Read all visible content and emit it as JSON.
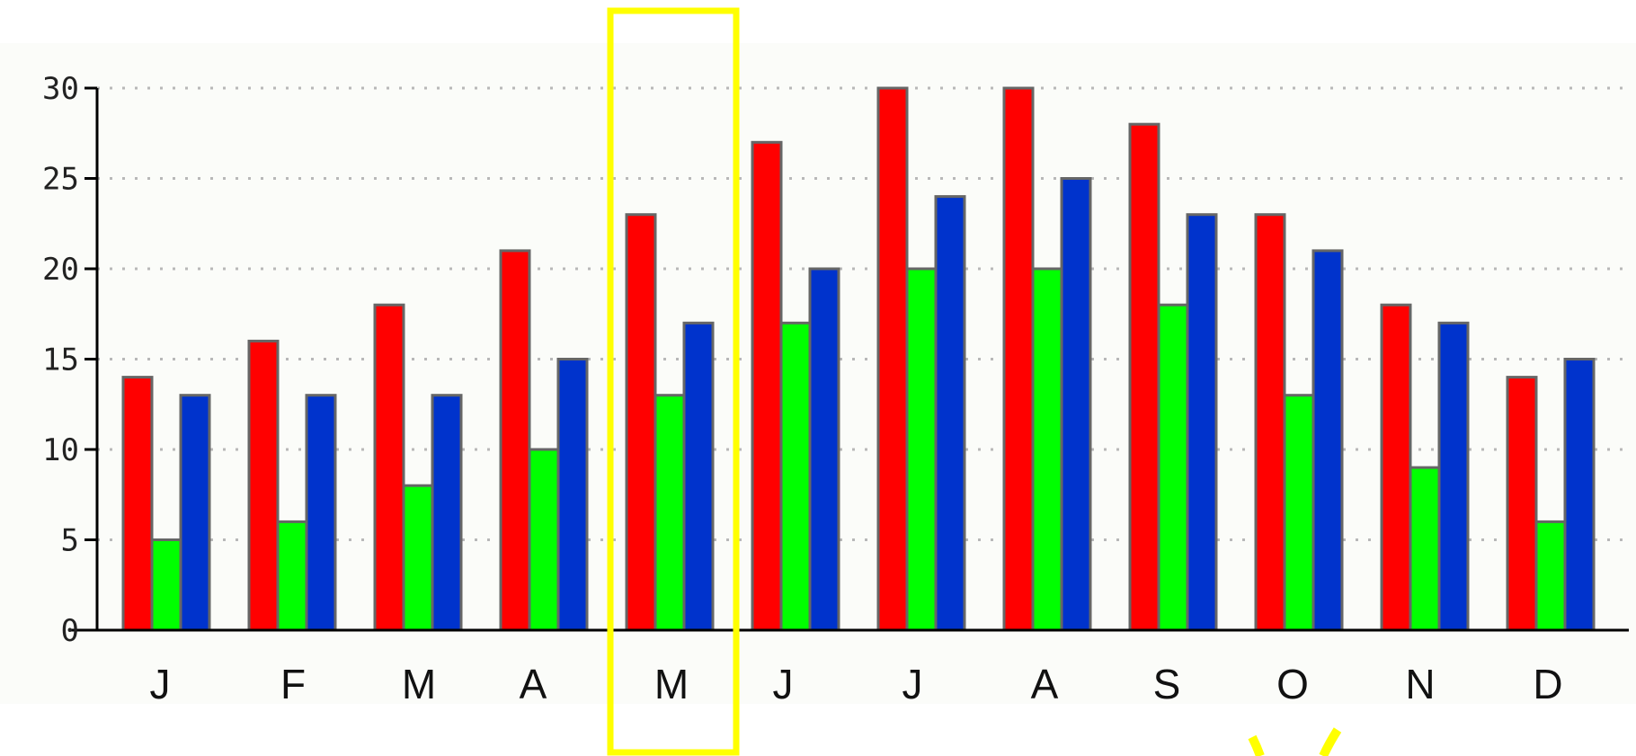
{
  "chart_data": {
    "type": "bar",
    "title": "",
    "xlabel": "",
    "ylabel": "",
    "categories": [
      "J",
      "F",
      "M",
      "A",
      "M",
      "J",
      "J",
      "A",
      "S",
      "O",
      "N",
      "D"
    ],
    "series": [
      {
        "color": "#ff0000",
        "values": [
          14,
          16,
          18,
          21,
          23,
          27,
          30,
          30,
          28,
          23,
          18,
          14
        ]
      },
      {
        "color": "#00ff00",
        "values": [
          5,
          6,
          8,
          10,
          13,
          17,
          20,
          20,
          18,
          13,
          9,
          6
        ]
      },
      {
        "color": "#0033cc",
        "values": [
          13,
          13,
          13,
          15,
          17,
          20,
          24,
          25,
          23,
          21,
          17,
          15
        ]
      }
    ],
    "ylim": [
      0,
      30
    ],
    "yticks": [
      0,
      5,
      10,
      15,
      20,
      25,
      30
    ],
    "grid": true,
    "legend": "none",
    "highlight": {
      "category_index": 4,
      "color": "#ffff00"
    }
  }
}
